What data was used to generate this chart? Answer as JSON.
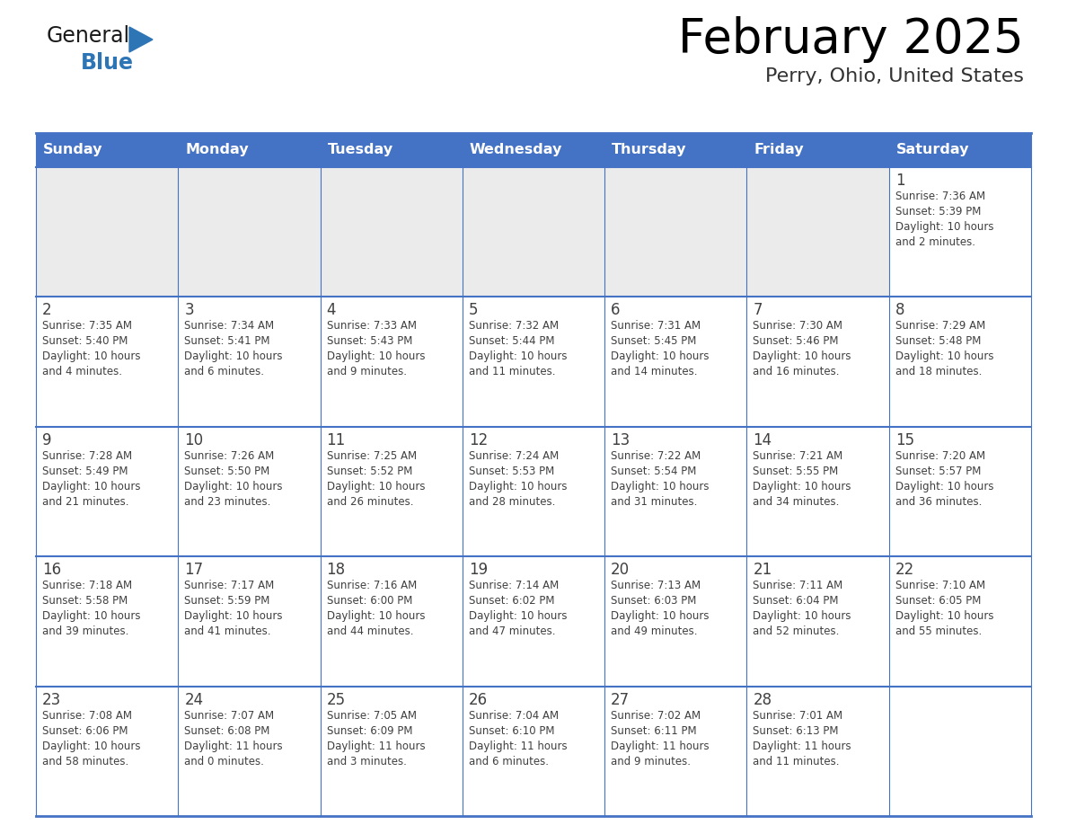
{
  "title": "February 2025",
  "subtitle": "Perry, Ohio, United States",
  "header_bg": "#4472C4",
  "header_text_color": "#FFFFFF",
  "cell_bg_empty": "#EBEBEB",
  "cell_bg_filled": "#FFFFFF",
  "border_color": "#4472C4",
  "text_color": "#404040",
  "days_of_week": [
    "Sunday",
    "Monday",
    "Tuesday",
    "Wednesday",
    "Thursday",
    "Friday",
    "Saturday"
  ],
  "weeks": [
    [
      {
        "day": "",
        "sunrise": "",
        "sunset": "",
        "daylight": ""
      },
      {
        "day": "",
        "sunrise": "",
        "sunset": "",
        "daylight": ""
      },
      {
        "day": "",
        "sunrise": "",
        "sunset": "",
        "daylight": ""
      },
      {
        "day": "",
        "sunrise": "",
        "sunset": "",
        "daylight": ""
      },
      {
        "day": "",
        "sunrise": "",
        "sunset": "",
        "daylight": ""
      },
      {
        "day": "",
        "sunrise": "",
        "sunset": "",
        "daylight": ""
      },
      {
        "day": "1",
        "sunrise": "Sunrise: 7:36 AM",
        "sunset": "Sunset: 5:39 PM",
        "daylight": "Daylight: 10 hours\nand 2 minutes."
      }
    ],
    [
      {
        "day": "2",
        "sunrise": "Sunrise: 7:35 AM",
        "sunset": "Sunset: 5:40 PM",
        "daylight": "Daylight: 10 hours\nand 4 minutes."
      },
      {
        "day": "3",
        "sunrise": "Sunrise: 7:34 AM",
        "sunset": "Sunset: 5:41 PM",
        "daylight": "Daylight: 10 hours\nand 6 minutes."
      },
      {
        "day": "4",
        "sunrise": "Sunrise: 7:33 AM",
        "sunset": "Sunset: 5:43 PM",
        "daylight": "Daylight: 10 hours\nand 9 minutes."
      },
      {
        "day": "5",
        "sunrise": "Sunrise: 7:32 AM",
        "sunset": "Sunset: 5:44 PM",
        "daylight": "Daylight: 10 hours\nand 11 minutes."
      },
      {
        "day": "6",
        "sunrise": "Sunrise: 7:31 AM",
        "sunset": "Sunset: 5:45 PM",
        "daylight": "Daylight: 10 hours\nand 14 minutes."
      },
      {
        "day": "7",
        "sunrise": "Sunrise: 7:30 AM",
        "sunset": "Sunset: 5:46 PM",
        "daylight": "Daylight: 10 hours\nand 16 minutes."
      },
      {
        "day": "8",
        "sunrise": "Sunrise: 7:29 AM",
        "sunset": "Sunset: 5:48 PM",
        "daylight": "Daylight: 10 hours\nand 18 minutes."
      }
    ],
    [
      {
        "day": "9",
        "sunrise": "Sunrise: 7:28 AM",
        "sunset": "Sunset: 5:49 PM",
        "daylight": "Daylight: 10 hours\nand 21 minutes."
      },
      {
        "day": "10",
        "sunrise": "Sunrise: 7:26 AM",
        "sunset": "Sunset: 5:50 PM",
        "daylight": "Daylight: 10 hours\nand 23 minutes."
      },
      {
        "day": "11",
        "sunrise": "Sunrise: 7:25 AM",
        "sunset": "Sunset: 5:52 PM",
        "daylight": "Daylight: 10 hours\nand 26 minutes."
      },
      {
        "day": "12",
        "sunrise": "Sunrise: 7:24 AM",
        "sunset": "Sunset: 5:53 PM",
        "daylight": "Daylight: 10 hours\nand 28 minutes."
      },
      {
        "day": "13",
        "sunrise": "Sunrise: 7:22 AM",
        "sunset": "Sunset: 5:54 PM",
        "daylight": "Daylight: 10 hours\nand 31 minutes."
      },
      {
        "day": "14",
        "sunrise": "Sunrise: 7:21 AM",
        "sunset": "Sunset: 5:55 PM",
        "daylight": "Daylight: 10 hours\nand 34 minutes."
      },
      {
        "day": "15",
        "sunrise": "Sunrise: 7:20 AM",
        "sunset": "Sunset: 5:57 PM",
        "daylight": "Daylight: 10 hours\nand 36 minutes."
      }
    ],
    [
      {
        "day": "16",
        "sunrise": "Sunrise: 7:18 AM",
        "sunset": "Sunset: 5:58 PM",
        "daylight": "Daylight: 10 hours\nand 39 minutes."
      },
      {
        "day": "17",
        "sunrise": "Sunrise: 7:17 AM",
        "sunset": "Sunset: 5:59 PM",
        "daylight": "Daylight: 10 hours\nand 41 minutes."
      },
      {
        "day": "18",
        "sunrise": "Sunrise: 7:16 AM",
        "sunset": "Sunset: 6:00 PM",
        "daylight": "Daylight: 10 hours\nand 44 minutes."
      },
      {
        "day": "19",
        "sunrise": "Sunrise: 7:14 AM",
        "sunset": "Sunset: 6:02 PM",
        "daylight": "Daylight: 10 hours\nand 47 minutes."
      },
      {
        "day": "20",
        "sunrise": "Sunrise: 7:13 AM",
        "sunset": "Sunset: 6:03 PM",
        "daylight": "Daylight: 10 hours\nand 49 minutes."
      },
      {
        "day": "21",
        "sunrise": "Sunrise: 7:11 AM",
        "sunset": "Sunset: 6:04 PM",
        "daylight": "Daylight: 10 hours\nand 52 minutes."
      },
      {
        "day": "22",
        "sunrise": "Sunrise: 7:10 AM",
        "sunset": "Sunset: 6:05 PM",
        "daylight": "Daylight: 10 hours\nand 55 minutes."
      }
    ],
    [
      {
        "day": "23",
        "sunrise": "Sunrise: 7:08 AM",
        "sunset": "Sunset: 6:06 PM",
        "daylight": "Daylight: 10 hours\nand 58 minutes."
      },
      {
        "day": "24",
        "sunrise": "Sunrise: 7:07 AM",
        "sunset": "Sunset: 6:08 PM",
        "daylight": "Daylight: 11 hours\nand 0 minutes."
      },
      {
        "day": "25",
        "sunrise": "Sunrise: 7:05 AM",
        "sunset": "Sunset: 6:09 PM",
        "daylight": "Daylight: 11 hours\nand 3 minutes."
      },
      {
        "day": "26",
        "sunrise": "Sunrise: 7:04 AM",
        "sunset": "Sunset: 6:10 PM",
        "daylight": "Daylight: 11 hours\nand 6 minutes."
      },
      {
        "day": "27",
        "sunrise": "Sunrise: 7:02 AM",
        "sunset": "Sunset: 6:11 PM",
        "daylight": "Daylight: 11 hours\nand 9 minutes."
      },
      {
        "day": "28",
        "sunrise": "Sunrise: 7:01 AM",
        "sunset": "Sunset: 6:13 PM",
        "daylight": "Daylight: 11 hours\nand 11 minutes."
      },
      {
        "day": "",
        "sunrise": "",
        "sunset": "",
        "daylight": ""
      }
    ]
  ],
  "logo_general_color": "#1a1a1a",
  "logo_blue_color": "#2E75B6"
}
